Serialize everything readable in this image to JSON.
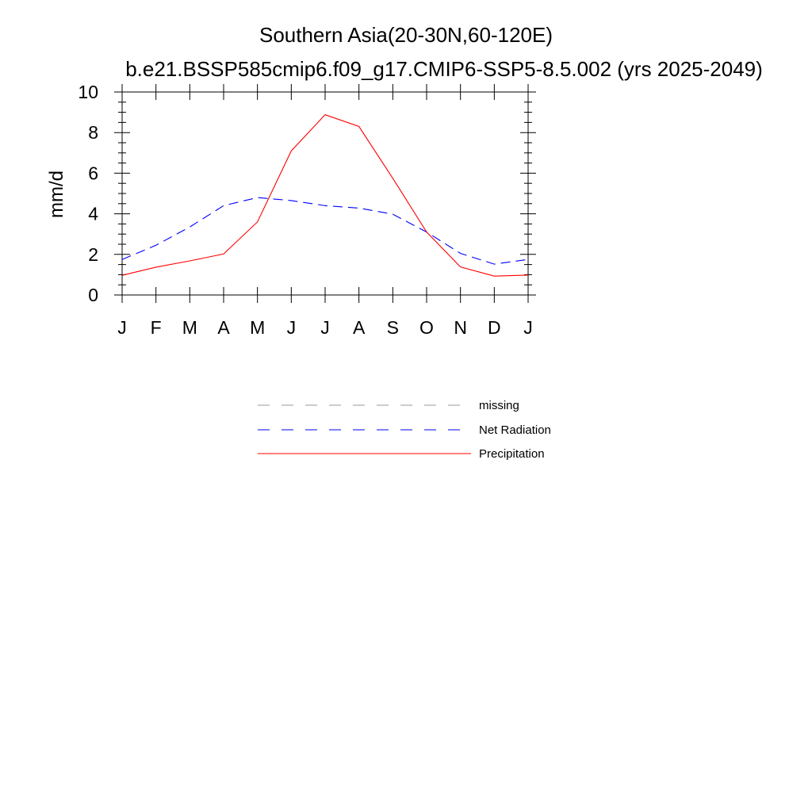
{
  "chart_data": {
    "type": "line",
    "title": "Southern Asia(20-30N,60-120E)",
    "subtitle": "b.e21.BSSP585cmip6.f09_g17.CMIP6-SSP5-8.5.002 (yrs 2025-2049)",
    "xlabel": "",
    "ylabel": "mm/d",
    "ylim": [
      0,
      10
    ],
    "yticks": [
      "0",
      "2",
      "4",
      "6",
      "8",
      "10"
    ],
    "categories": [
      "J",
      "F",
      "M",
      "A",
      "M",
      "J",
      "J",
      "A",
      "S",
      "O",
      "N",
      "D",
      "J"
    ],
    "grid": false,
    "legend_placement": "bottom",
    "series": [
      {
        "name": "Net Radiation",
        "color": "#0000ff",
        "dash": "dashed",
        "values": [
          1.75,
          2.45,
          3.35,
          4.4,
          4.8,
          4.65,
          4.4,
          4.28,
          3.98,
          3.1,
          2.05,
          1.52,
          1.75
        ]
      },
      {
        "name": "Precipitation",
        "color": "#ff0000",
        "dash": "solid",
        "values": [
          0.97,
          1.37,
          1.68,
          2.02,
          3.6,
          7.1,
          8.88,
          8.3,
          5.75,
          3.1,
          1.38,
          0.93,
          0.98
        ]
      }
    ],
    "legend": [
      {
        "label": "missing",
        "color": "#999999",
        "dash": "dashed"
      },
      {
        "label": "Net Radiation",
        "color": "#0000ff",
        "dash": "dashed"
      },
      {
        "label": "Precipitation",
        "color": "#ff0000",
        "dash": "solid"
      }
    ]
  }
}
